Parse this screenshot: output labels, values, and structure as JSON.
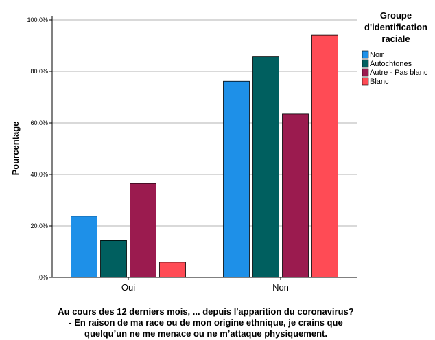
{
  "chart_data": {
    "type": "bar",
    "categories": [
      "Oui",
      "Non"
    ],
    "series": [
      {
        "name": "Noir",
        "color": "#1E90E8",
        "values": [
          23.8,
          76.2
        ]
      },
      {
        "name": "Autochtones",
        "color": "#005F5F",
        "values": [
          14.3,
          85.7
        ]
      },
      {
        "name": "Autre - Pas blanc",
        "color": "#9B1B4F",
        "values": [
          36.5,
          63.5
        ]
      },
      {
        "name": "Blanc",
        "color": "#FF4B55",
        "values": [
          5.9,
          94.1
        ]
      }
    ],
    "ylim": [
      0,
      100
    ],
    "yticks": [
      ".0%",
      "20.0%",
      "40.0%",
      "60.0%",
      "80.0%",
      "100.0%"
    ],
    "ylabel": "Pourcentage",
    "xlabel": [
      "Au cours des 12 derniers mois, ... depuis l'apparition du coronavirus?",
      "- En raison de ma race ou de mon origine ethnique, je crains que",
      "quelqu’un ne me menace ou ne m’attaque physiquement."
    ],
    "legend": {
      "title": [
        "Groupe",
        "d'identification",
        "raciale"
      ],
      "placement": "top-right"
    },
    "grid": true
  }
}
